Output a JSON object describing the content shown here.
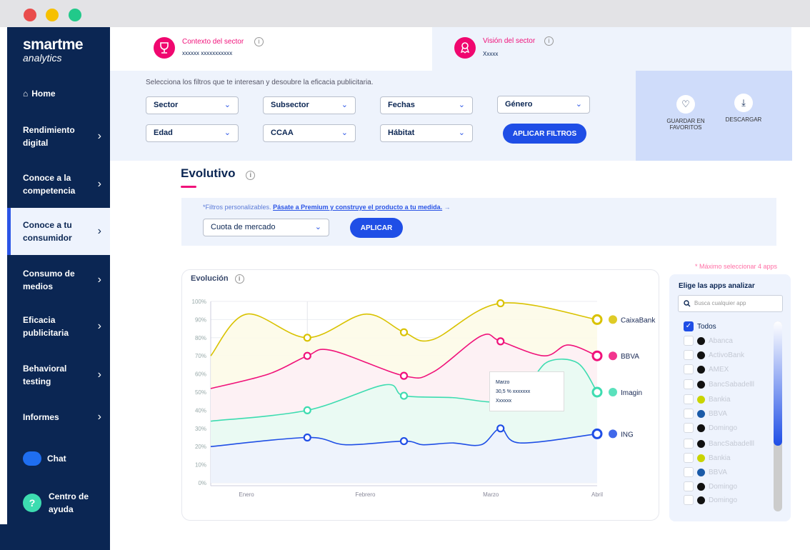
{
  "window": {
    "colors": {
      "close": "#e94c4c",
      "min": "#f6c000",
      "max": "#22c98a"
    }
  },
  "sidebar": {
    "logo_main": "smartme",
    "logo_sub": "analytics",
    "items": [
      {
        "label": "Home"
      },
      {
        "label": "Rendimiento digital"
      },
      {
        "label": "Conoce a la competencia"
      },
      {
        "label": "Conoce a tu consumidor"
      },
      {
        "label": "Consumo de medios"
      },
      {
        "label": "Eficacia publicitaria"
      },
      {
        "label": "Behavioral testing"
      },
      {
        "label": "Informes"
      },
      {
        "label": "Chat"
      },
      {
        "label": "Centro de ayuda"
      }
    ]
  },
  "header": {
    "context_title": "Contexto del sector",
    "context_value": "xxxxxx xxxxxxxxxxx",
    "vision_title": "Visión del sector",
    "vision_value": "Xxxxx"
  },
  "filters": {
    "intro": "Selecciona los filtros  que te interesan y desoubre la eficacia publicitaria.",
    "selects": [
      "Sector",
      "Subsector",
      "Fechas",
      "Género",
      "Edad",
      "CCAA",
      "Hábitat"
    ],
    "apply": "APLICAR FILTROS"
  },
  "actions": {
    "favorites": "GUARDAR EN FAVORITOS",
    "download": "DESCARGAR"
  },
  "section": {
    "title": "Evolutivo",
    "premium_note": "*Filtros personalizables.",
    "premium_link": "Pásate a Premium y construye el producto a tu medida.",
    "metric": "Cuota de mercado",
    "apply": "APLICAR"
  },
  "chart_data": {
    "type": "area",
    "title": "Evolución",
    "ylim": [
      0,
      100
    ],
    "yticks": [
      "0%",
      "10%",
      "20%",
      "30%",
      "40%",
      "50%",
      "60%",
      "70%",
      "80%",
      "90%",
      "100%"
    ],
    "xticks": [
      {
        "label": "Enero",
        "x": 0.37
      },
      {
        "label": "Febrero",
        "x": 1.6
      },
      {
        "label": "Marzo",
        "x": 2.9
      },
      {
        "label": "Abril",
        "x": 4
      }
    ],
    "series": [
      {
        "name": "CaixaBank",
        "color": "#d9c200",
        "fill": "#fdfbe8",
        "points": [
          [
            0,
            70
          ],
          [
            0.37,
            93
          ],
          [
            1,
            80
          ],
          [
            1.6,
            93
          ],
          [
            2,
            83
          ],
          [
            2.3,
            79
          ],
          [
            3,
            99
          ],
          [
            4,
            90
          ]
        ],
        "markers": [
          1,
          2,
          3,
          4
        ]
      },
      {
        "name": "BBVA",
        "color": "#f0127a",
        "fill": "#fdf0f5",
        "points": [
          [
            0,
            52
          ],
          [
            0.6,
            60
          ],
          [
            1,
            70
          ],
          [
            1.25,
            73
          ],
          [
            2,
            59
          ],
          [
            2.3,
            61
          ],
          [
            2.8,
            81
          ],
          [
            3,
            78
          ],
          [
            3.45,
            70
          ],
          [
            3.7,
            76
          ],
          [
            4,
            70
          ]
        ],
        "markers": [
          1,
          2,
          3,
          4
        ]
      },
      {
        "name": "Imagin",
        "color": "#3ddcb0",
        "fill": "#e8fbf3",
        "points": [
          [
            0,
            34
          ],
          [
            1,
            40
          ],
          [
            1.8,
            54
          ],
          [
            2,
            48
          ],
          [
            2.5,
            47
          ],
          [
            3,
            45
          ],
          [
            3.3,
            56
          ],
          [
            3.5,
            67
          ],
          [
            3.8,
            66
          ],
          [
            4,
            50
          ]
        ],
        "markers": [
          1,
          2,
          4
        ]
      },
      {
        "name": "ING",
        "color": "#1f4ee6",
        "fill": "#eef2fd",
        "points": [
          [
            0,
            20
          ],
          [
            1,
            25
          ],
          [
            1.4,
            21
          ],
          [
            2,
            23
          ],
          [
            2.2,
            21
          ],
          [
            2.5,
            22
          ],
          [
            2.8,
            21
          ],
          [
            3,
            30
          ],
          [
            3.2,
            22
          ],
          [
            4,
            27
          ]
        ],
        "markers": [
          1,
          2,
          3,
          4
        ]
      }
    ],
    "tooltip": {
      "title": "Marzo",
      "line1": "30,5 % xxxxxxx",
      "line2": "Xxxxxx"
    }
  },
  "apps": {
    "max_note": "* Máximo seleccionar 4 apps",
    "title": "Elige las apps analizar",
    "search_placeholder": "Busca cualquier app",
    "all": "Todos",
    "list": [
      "Abanca",
      "ActivoBank",
      "AMEX",
      "BancSabadelll",
      "Bankia",
      "BBVA",
      "Domingo",
      "BancSabadelll",
      "Bankia",
      "BBVA",
      "Domingo",
      "Domingo"
    ]
  }
}
